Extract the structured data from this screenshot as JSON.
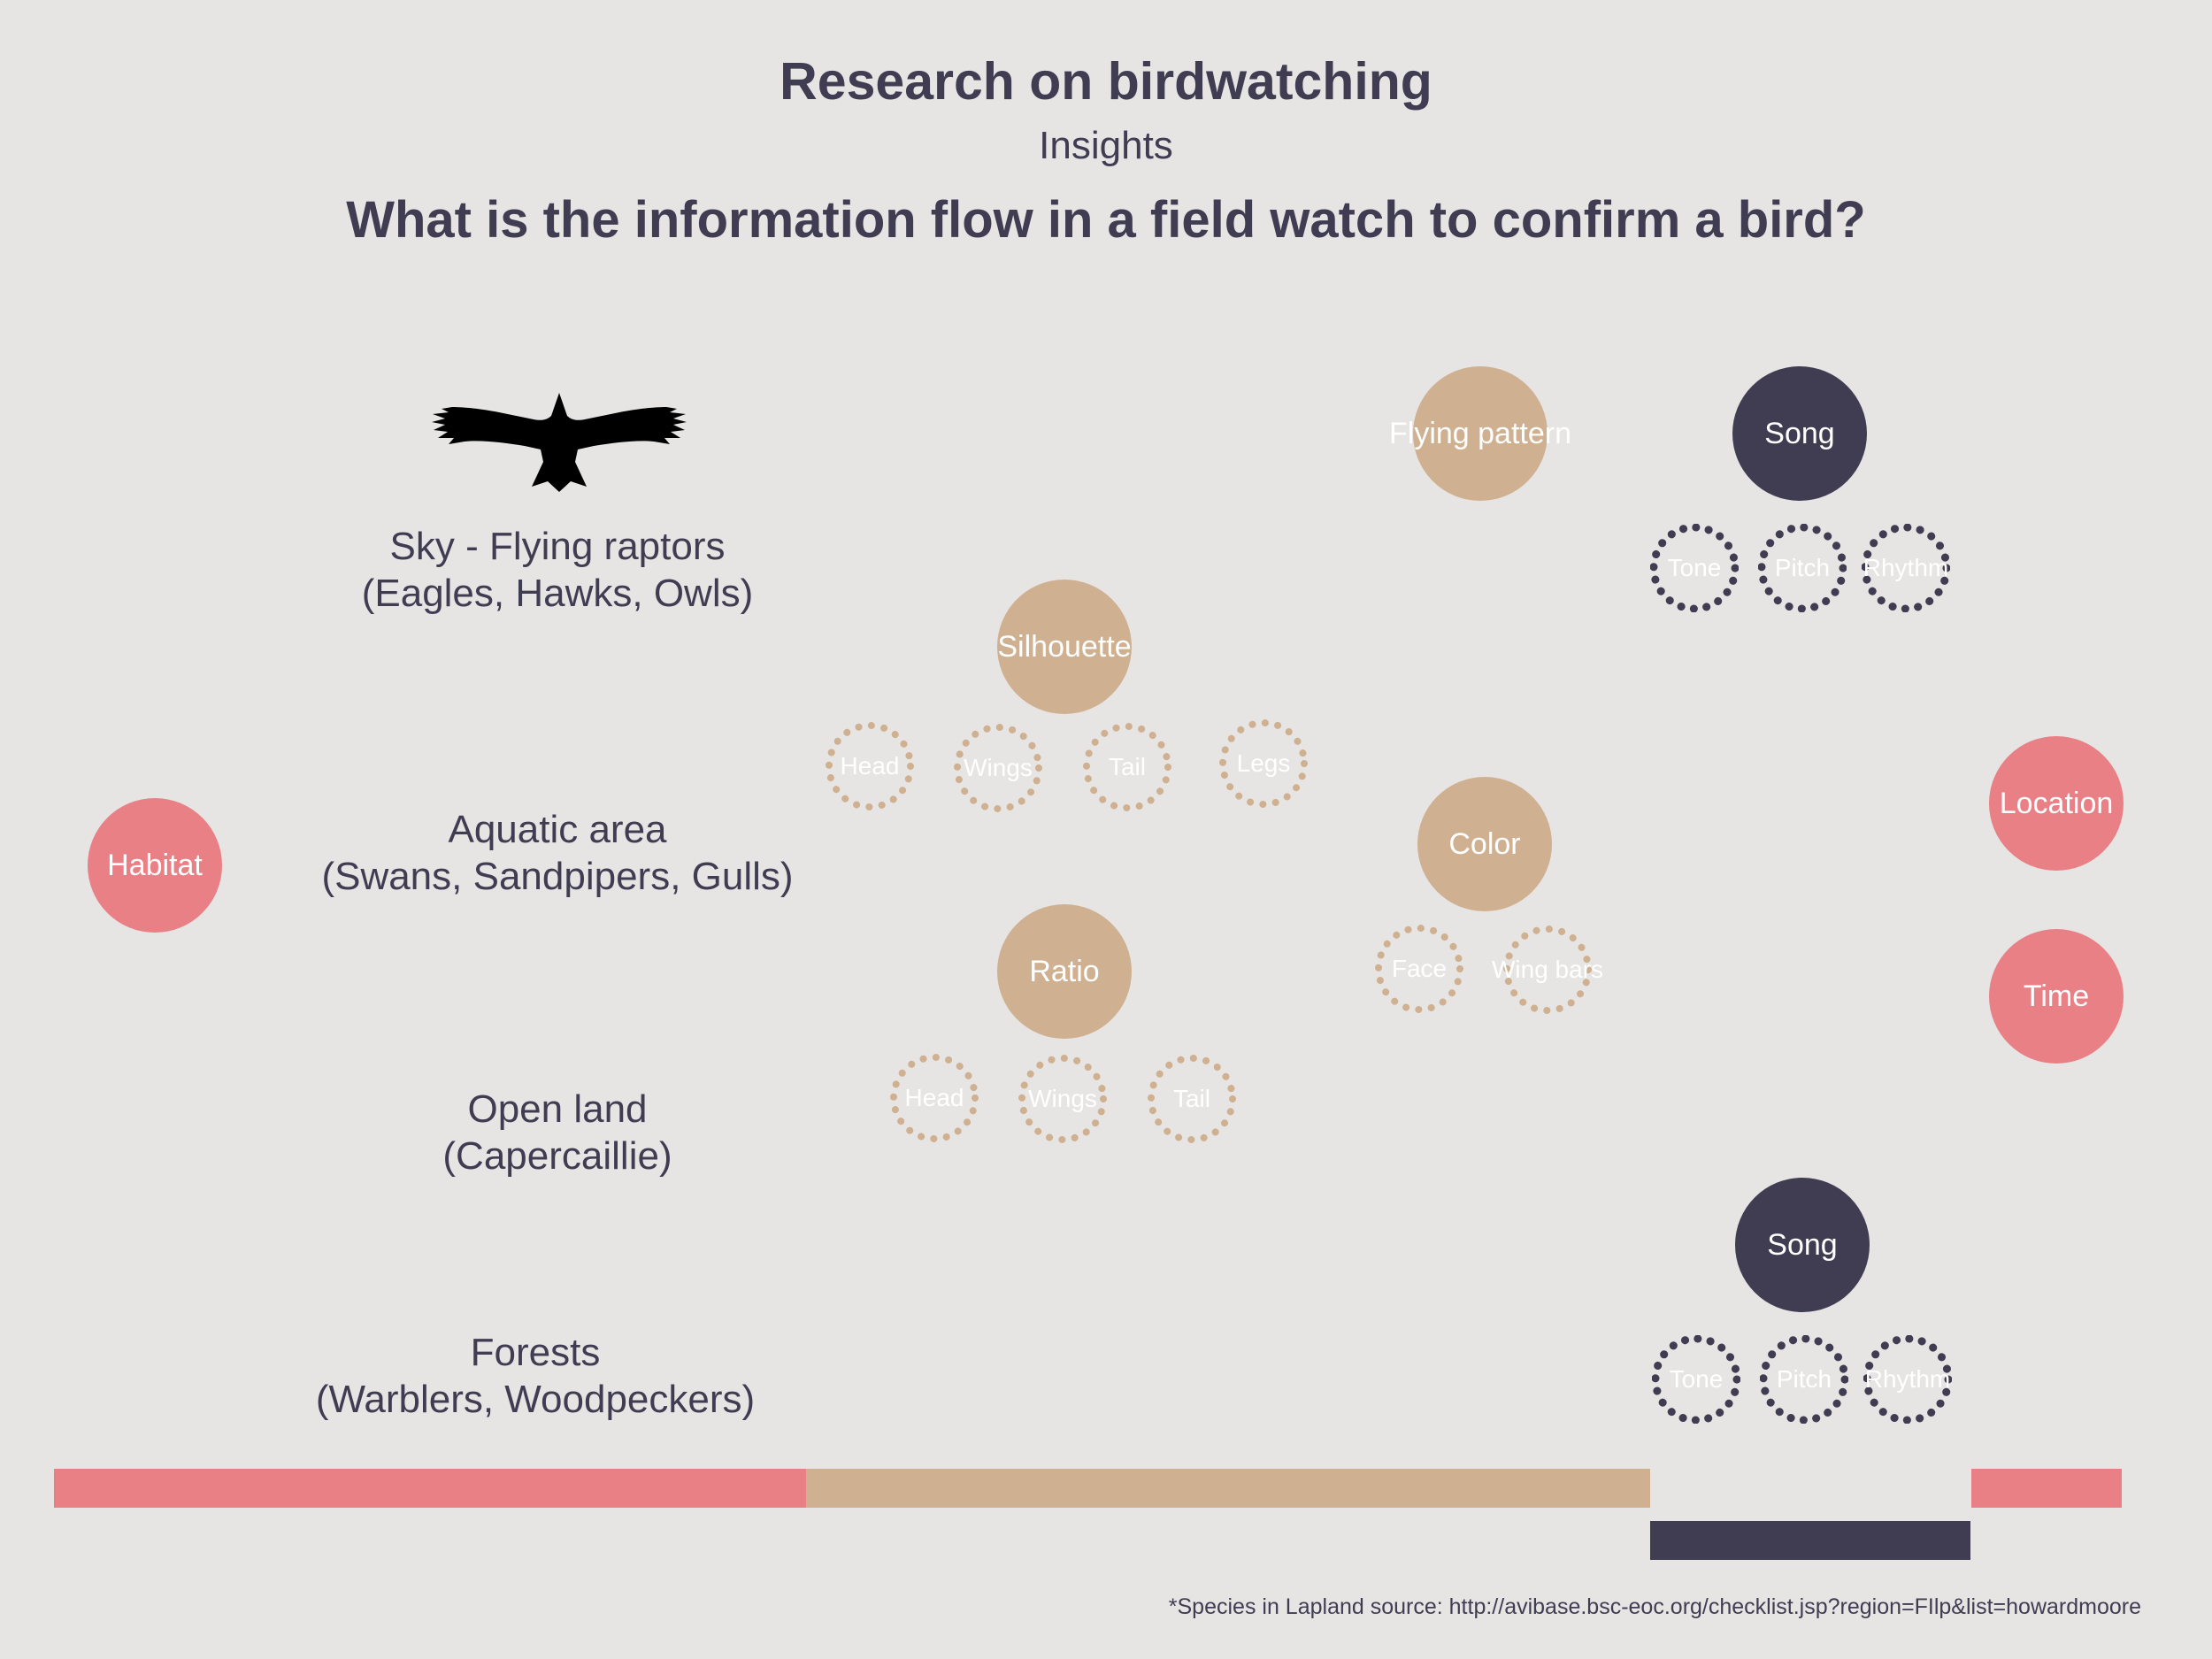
{
  "header": {
    "title": "Research on birdwatching",
    "subtitle": "Insights",
    "question": "What is the information flow in a field watch to confirm a bird?"
  },
  "zones": [
    {
      "line1": "Sky - Flying raptors",
      "line2": "(Eagles, Hawks, Owls)"
    },
    {
      "line1": "Aquatic area",
      "line2": "(Swans, Sandpipers, Gulls)"
    },
    {
      "line1": "Open land",
      "line2": "(Capercaillie)"
    },
    {
      "line1": "Forests",
      "line2": "(Warblers, Woodpeckers)"
    }
  ],
  "nodes": {
    "habitat": "Habitat",
    "silhouette": "Silhouette",
    "ratio": "Ratio",
    "flying_pattern": "Flying pattern",
    "color": "Color",
    "song_top": "Song",
    "song_bottom": "Song",
    "location": "Location",
    "time": "Time"
  },
  "subnodes": {
    "silhouette": [
      "Head",
      "Wings",
      "Tail",
      "Legs"
    ],
    "ratio": [
      "Head",
      "Wings",
      "Tail"
    ],
    "color": [
      "Face",
      "Wing bars"
    ],
    "song_top": [
      "Tone",
      "Pitch",
      "Rhythm"
    ],
    "song_bottom": [
      "Tone",
      "Pitch",
      "Rhythm"
    ]
  },
  "colors": {
    "red": "#e88085",
    "tan": "#cfb191",
    "dark": "#403d52",
    "background": "#e6e5e3"
  },
  "icons": {
    "bird": "flying-raptor-icon"
  },
  "footnote": "*Species in Lapland source: http://avibase.bsc-eoc.org/checklist.jsp?region=FIlp&list=howardmoore"
}
